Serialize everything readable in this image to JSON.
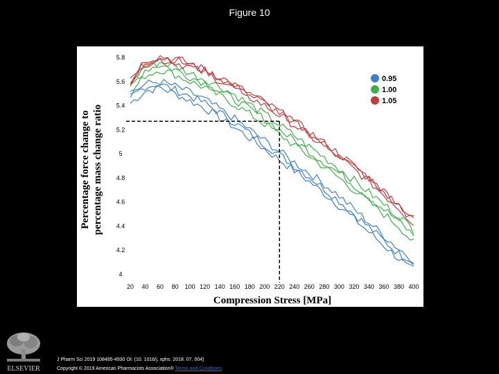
{
  "slide": {
    "title": "Figure 10"
  },
  "footer": {
    "journal_line": "J Pharm Sci 2019 108495-4930 OI: (10. 1016/j. xphs. 2018. 07. 004)",
    "copyright_text": "Copyright © 2019 American Pharmacists Association® ",
    "terms_link": "Terms and Conditions",
    "logo_text": "ELSEVIER"
  },
  "colors": {
    "series_095": "#3b7fd1",
    "series_100": "#3eb04a",
    "series_105": "#c23b3b",
    "reference_line": "#000000"
  },
  "chart_data": {
    "type": "line",
    "xlabel": "Compression Stress [MPa]",
    "ylabel_lines": [
      "Percentage force change to",
      "percentage mass change ratio"
    ],
    "xlim": [
      20,
      400
    ],
    "ylim": [
      4,
      5.8
    ],
    "x_ticks": [
      20,
      40,
      60,
      80,
      100,
      120,
      140,
      160,
      180,
      200,
      220,
      240,
      260,
      280,
      300,
      320,
      340,
      360,
      380,
      400
    ],
    "y_ticks": [
      4,
      4.2,
      4.4,
      4.6,
      4.8,
      5,
      5.2,
      5.4,
      5.6,
      5.8
    ],
    "legend_position": "top-right",
    "grid": false,
    "reference_point": {
      "x": 220,
      "y": 5.27
    },
    "x": [
      20,
      40,
      60,
      80,
      100,
      120,
      140,
      160,
      180,
      200,
      220,
      240,
      260,
      280,
      300,
      320,
      340,
      360,
      380,
      400
    ],
    "series": [
      {
        "name": "0.95",
        "color": "#3b7fd1",
        "replicates": [
          [
            5.42,
            5.52,
            5.55,
            5.5,
            5.44,
            5.38,
            5.3,
            5.22,
            5.13,
            5.04,
            4.95,
            4.86,
            4.77,
            4.67,
            4.57,
            4.46,
            4.35,
            4.24,
            4.13,
            4.05
          ],
          [
            5.47,
            5.56,
            5.58,
            5.53,
            5.48,
            5.42,
            5.34,
            5.26,
            5.17,
            5.08,
            4.99,
            4.9,
            4.81,
            4.71,
            4.61,
            4.5,
            4.39,
            4.28,
            4.17,
            4.08
          ],
          [
            5.5,
            5.58,
            5.6,
            5.56,
            5.51,
            5.45,
            5.37,
            5.29,
            5.2,
            5.11,
            5.02,
            4.93,
            4.84,
            4.75,
            4.65,
            4.54,
            4.43,
            4.32,
            4.21,
            4.12
          ]
        ]
      },
      {
        "name": "1.00",
        "color": "#3eb04a",
        "replicates": [
          [
            5.5,
            5.65,
            5.7,
            5.66,
            5.6,
            5.55,
            5.48,
            5.41,
            5.33,
            5.25,
            5.16,
            5.07,
            4.98,
            4.89,
            4.8,
            4.7,
            4.6,
            4.5,
            4.4,
            4.26
          ],
          [
            5.55,
            5.7,
            5.74,
            5.7,
            5.64,
            5.59,
            5.52,
            5.45,
            5.37,
            5.29,
            5.2,
            5.11,
            5.02,
            4.93,
            4.84,
            4.74,
            4.64,
            4.54,
            4.44,
            4.32
          ],
          [
            5.58,
            5.73,
            5.76,
            5.73,
            5.67,
            5.62,
            5.56,
            5.49,
            5.41,
            5.33,
            5.24,
            5.15,
            5.06,
            4.97,
            4.88,
            4.78,
            4.68,
            4.58,
            4.48,
            4.37
          ]
        ]
      },
      {
        "name": "1.05",
        "color": "#c23b3b",
        "replicates": [
          [
            5.6,
            5.75,
            5.78,
            5.76,
            5.72,
            5.67,
            5.61,
            5.54,
            5.47,
            5.4,
            5.32,
            5.24,
            5.15,
            5.06,
            4.97,
            4.87,
            4.77,
            4.66,
            4.55,
            4.42
          ],
          [
            5.63,
            5.78,
            5.81,
            5.79,
            5.75,
            5.7,
            5.64,
            5.57,
            5.5,
            5.43,
            5.35,
            5.27,
            5.18,
            5.09,
            5,
            4.9,
            4.8,
            4.69,
            4.58,
            4.46
          ],
          [
            5.58,
            5.76,
            5.8,
            5.78,
            5.74,
            5.69,
            5.63,
            5.56,
            5.49,
            5.42,
            5.34,
            5.26,
            5.17,
            5.08,
            4.99,
            4.89,
            4.79,
            4.68,
            4.57,
            4.44
          ]
        ]
      }
    ]
  }
}
